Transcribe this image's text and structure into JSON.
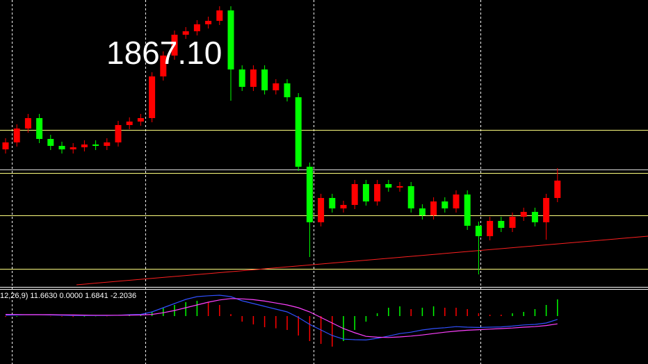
{
  "chart_data": {
    "type": "candlestick",
    "price_label": "1867.10",
    "indicator_label": "12,26,9) 11.6630 0.0000 1.6841 -2.2036",
    "up_color": "#ff0000",
    "down_color": "#00ff00",
    "ylim": [
      1830,
      1871
    ],
    "open": [
      1849.5,
      1850.5,
      1852.5,
      1854,
      1851,
      1850,
      1849.5,
      1849.8,
      1850.2,
      1850,
      1850.5,
      1853,
      1853.5,
      1854,
      1860,
      1863,
      1866,
      1866.5,
      1867.5,
      1868,
      1869.5,
      1861,
      1858.5,
      1861,
      1858,
      1859,
      1857,
      1847,
      1839,
      1842.5,
      1841,
      1841.5,
      1844.5,
      1842,
      1844.5,
      1844,
      1844.2,
      1841,
      1840,
      1842,
      1841,
      1843,
      1838.5,
      1837,
      1839.2,
      1838.2,
      1839.8,
      1840.5,
      1839,
      1842.5
    ],
    "high": [
      1851.1,
      1853.1,
      1854.6,
      1854.6,
      1851.6,
      1850.6,
      1850.4,
      1850.8,
      1850.8,
      1851.1,
      1853.6,
      1854.1,
      1854.6,
      1860.6,
      1863.6,
      1866.6,
      1867.1,
      1868.1,
      1868.6,
      1870.1,
      1870.1,
      1861.6,
      1861.6,
      1861.6,
      1859.6,
      1859.6,
      1857.6,
      1847.6,
      1843.1,
      1843.1,
      1842.1,
      1845.1,
      1845.1,
      1845.1,
      1845.1,
      1844.8,
      1844.8,
      1841.6,
      1842.6,
      1842.6,
      1843.6,
      1843.6,
      1839.1,
      1839.8,
      1839.8,
      1840.4,
      1841.1,
      1841.1,
      1843.1,
      1846.8
    ],
    "low": [
      1848.9,
      1849.9,
      1851.9,
      1850.4,
      1849.4,
      1848.9,
      1848.9,
      1849.2,
      1849.4,
      1849.4,
      1849.9,
      1852.4,
      1852.9,
      1853.4,
      1859.4,
      1862.4,
      1865.4,
      1865.9,
      1866.9,
      1867.4,
      1856.5,
      1857.9,
      1857.9,
      1857.4,
      1857.4,
      1856.4,
      1846.4,
      1834,
      1838.4,
      1840.4,
      1840.4,
      1840.9,
      1841.4,
      1841.4,
      1843.4,
      1843.4,
      1840.4,
      1839.4,
      1839.4,
      1840.4,
      1840.4,
      1837.9,
      1831.5,
      1836.4,
      1837.6,
      1837.6,
      1839.2,
      1838.4,
      1836.5,
      1841.9
    ],
    "close": [
      1850.5,
      1852.5,
      1854,
      1851,
      1850,
      1849.5,
      1849.8,
      1850.2,
      1850,
      1850.5,
      1853,
      1853.5,
      1854,
      1860,
      1863,
      1866,
      1866.5,
      1867.5,
      1868,
      1869.5,
      1861,
      1858.5,
      1861,
      1858,
      1859,
      1857,
      1847,
      1839,
      1842.5,
      1841,
      1841.5,
      1844.5,
      1842,
      1844.5,
      1844,
      1844.2,
      1841,
      1840,
      1842,
      1841,
      1843,
      1838.5,
      1837,
      1839.2,
      1838.2,
      1839.8,
      1840.5,
      1839,
      1842.5,
      1845
    ],
    "levels": [
      {
        "value": 1852.3,
        "color": "#ffff80"
      },
      {
        "value": 1846.6,
        "color": "#e0e0e0"
      },
      {
        "value": 1846.1,
        "color": "#ffff80"
      },
      {
        "value": 1840,
        "color": "#ffff80"
      },
      {
        "value": 1832.3,
        "color": "#ffff80"
      }
    ],
    "trendline": {
      "values": [
        1830,
        1837
      ],
      "color": "#ff2020"
    },
    "macd": {
      "ylim": [
        -17.25,
        10
      ],
      "main_color": "#3050ff",
      "signal_color": "#ff40ff",
      "rise_color": "#00ff00",
      "fall_color": "#ff0000",
      "main": [
        0.3,
        0.4,
        0.5,
        0.5,
        0.4,
        0.3,
        0.2,
        0.2,
        0.2,
        0.2,
        0.3,
        0.5,
        0.6,
        1.5,
        3,
        4.5,
        6,
        7,
        7.3,
        7.5,
        7,
        5.5,
        4.5,
        3.5,
        2.5,
        1.5,
        -0.5,
        -3,
        -5,
        -7,
        -8.3,
        -8.5,
        -8.6,
        -8,
        -7.2,
        -6.3,
        -5.8,
        -5,
        -4.5,
        -4.2,
        -3.8,
        -4,
        -4.1,
        -4,
        -3.9,
        -3.6,
        -3.2,
        -3,
        -2.5,
        -1.2
      ],
      "signal": [
        0.6,
        0.55,
        0.5,
        0.5,
        0.5,
        0.45,
        0.4,
        0.35,
        0.3,
        0.3,
        0.3,
        0.35,
        0.4,
        0.6,
        1.2,
        2,
        3,
        4,
        5,
        5.8,
        6.3,
        6.2,
        5.9,
        5.4,
        4.7,
        4,
        3,
        1.5,
        -0.5,
        -2.5,
        -4.5,
        -6,
        -7.3,
        -7.6,
        -7.7,
        -7.5,
        -7.2,
        -6.8,
        -6.3,
        -5.8,
        -5.4,
        -5.1,
        -4.9,
        -4.7,
        -4.5,
        -4.3,
        -4,
        -3.8,
        -3.4,
        -2.8
      ],
      "histogram": [
        -0.3,
        -0.2,
        0,
        0,
        -0.1,
        -0.2,
        -0.3,
        -0.2,
        -0.1,
        -0.1,
        0,
        0.3,
        0.4,
        1.5,
        3,
        4,
        5,
        5.5,
        5,
        4,
        0.7,
        -2,
        -3,
        -4,
        -4.4,
        -5,
        -7,
        -9,
        -10,
        -11,
        -9,
        -5,
        -2,
        1,
        3,
        3.5,
        2.5,
        3,
        3.5,
        3,
        3,
        2.5,
        1,
        0.5,
        0.5,
        1,
        1.5,
        2.5,
        4,
        6
      ]
    }
  }
}
